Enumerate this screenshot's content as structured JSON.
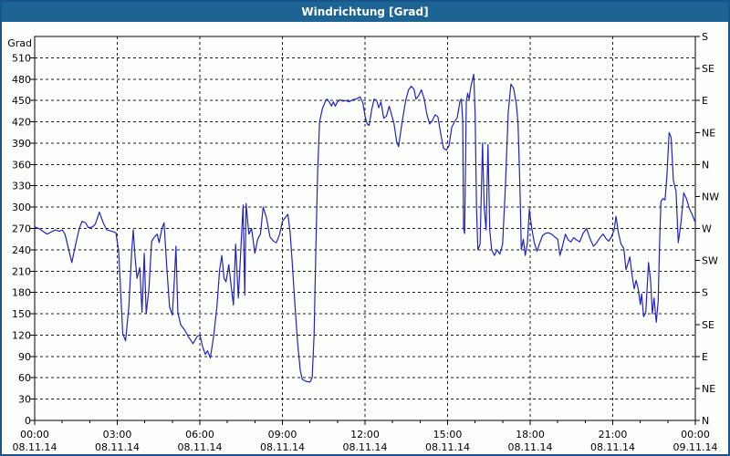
{
  "window": {
    "title": "Windrichtung [Grad]"
  },
  "colors": {
    "titlebar_bg": "#1D6394",
    "titlebar_text": "#FFFFFF",
    "window_border": "#17548C",
    "plot_background": "#FDFFFD",
    "grid": "#1B1B1B",
    "line": "#2222C8",
    "label_text": "#000000"
  },
  "chart_data": {
    "type": "line",
    "title": "Windrichtung [Grad]",
    "grid": "dashed",
    "legend": "none",
    "xlabel": "",
    "ylabel": "Grad",
    "ylim": [
      0,
      540
    ],
    "xlim_hours": [
      0,
      24
    ],
    "y_axis_left": {
      "label": "Grad",
      "min": 0,
      "max": 540,
      "tick_step": 30,
      "tick_labels": [
        "0",
        "30",
        "60",
        "90",
        "120",
        "150",
        "180",
        "210",
        "240",
        "270",
        "300",
        "330",
        "360",
        "390",
        "420",
        "450",
        "480",
        "510"
      ]
    },
    "y_axis_right": {
      "unit": "compass",
      "tick_step_deg": 45,
      "labels_bottom_to_top": [
        "N",
        "NE",
        "E",
        "SE",
        "S",
        "SW",
        "W",
        "NW",
        "N",
        "NE",
        "E",
        "SE",
        "S"
      ]
    },
    "x_axis": {
      "major_tick_hours": 3,
      "minor_tick_hours": 1,
      "ticks": [
        {
          "time": "00:00",
          "date": "08.11.14"
        },
        {
          "time": "03:00",
          "date": "08.11.14"
        },
        {
          "time": "06:00",
          "date": "08.11.14"
        },
        {
          "time": "09:00",
          "date": "08.11.14"
        },
        {
          "time": "12:00",
          "date": "08.11.14"
        },
        {
          "time": "15:00",
          "date": "08.11.14"
        },
        {
          "time": "18:00",
          "date": "08.11.14"
        },
        {
          "time": "21:00",
          "date": "08.11.14"
        },
        {
          "time": "00:00",
          "date": "09.11.14"
        }
      ]
    },
    "series": [
      {
        "name": "Windrichtung",
        "unit": "Grad",
        "color": "#2222C8",
        "points": [
          [
            0,
            272
          ],
          [
            0.15,
            270
          ],
          [
            0.3,
            266
          ],
          [
            0.45,
            262
          ],
          [
            0.6,
            265
          ],
          [
            0.75,
            268
          ],
          [
            0.9,
            266
          ],
          [
            1.0,
            268
          ],
          [
            1.1,
            262
          ],
          [
            1.2,
            246
          ],
          [
            1.35,
            222
          ],
          [
            1.5,
            250
          ],
          [
            1.62,
            270
          ],
          [
            1.72,
            280
          ],
          [
            1.85,
            278
          ],
          [
            1.95,
            271
          ],
          [
            2.1,
            272
          ],
          [
            2.2,
            276
          ],
          [
            2.35,
            293
          ],
          [
            2.5,
            277
          ],
          [
            2.62,
            268
          ],
          [
            2.8,
            266
          ],
          [
            2.95,
            264
          ],
          [
            3.05,
            238
          ],
          [
            3.12,
            185
          ],
          [
            3.2,
            122
          ],
          [
            3.3,
            112
          ],
          [
            3.42,
            160
          ],
          [
            3.52,
            235
          ],
          [
            3.58,
            268
          ],
          [
            3.65,
            228
          ],
          [
            3.72,
            200
          ],
          [
            3.82,
            215
          ],
          [
            3.9,
            152
          ],
          [
            3.98,
            235
          ],
          [
            4.05,
            150
          ],
          [
            4.15,
            185
          ],
          [
            4.25,
            252
          ],
          [
            4.35,
            258
          ],
          [
            4.45,
            262
          ],
          [
            4.52,
            250
          ],
          [
            4.62,
            270
          ],
          [
            4.7,
            278
          ],
          [
            4.8,
            215
          ],
          [
            4.9,
            160
          ],
          [
            5.0,
            148
          ],
          [
            5.08,
            200
          ],
          [
            5.13,
            245
          ],
          [
            5.2,
            152
          ],
          [
            5.3,
            135
          ],
          [
            5.45,
            127
          ],
          [
            5.6,
            117
          ],
          [
            5.75,
            108
          ],
          [
            5.9,
            118
          ],
          [
            6.0,
            120
          ],
          [
            6.1,
            104
          ],
          [
            6.2,
            93
          ],
          [
            6.28,
            98
          ],
          [
            6.38,
            88
          ],
          [
            6.5,
            118
          ],
          [
            6.62,
            160
          ],
          [
            6.72,
            212
          ],
          [
            6.8,
            232
          ],
          [
            6.88,
            200
          ],
          [
            6.95,
            195
          ],
          [
            7.05,
            219
          ],
          [
            7.15,
            185
          ],
          [
            7.22,
            162
          ],
          [
            7.3,
            248
          ],
          [
            7.4,
            172
          ],
          [
            7.5,
            250
          ],
          [
            7.57,
            303
          ],
          [
            7.63,
            176
          ],
          [
            7.68,
            305
          ],
          [
            7.78,
            262
          ],
          [
            7.88,
            270
          ],
          [
            8.0,
            235
          ],
          [
            8.1,
            255
          ],
          [
            8.2,
            262
          ],
          [
            8.3,
            300
          ],
          [
            8.42,
            285
          ],
          [
            8.55,
            258
          ],
          [
            8.68,
            252
          ],
          [
            8.78,
            250
          ],
          [
            8.9,
            262
          ],
          [
            9.0,
            280
          ],
          [
            9.1,
            285
          ],
          [
            9.2,
            290
          ],
          [
            9.28,
            265
          ],
          [
            9.35,
            225
          ],
          [
            9.45,
            165
          ],
          [
            9.55,
            110
          ],
          [
            9.65,
            70
          ],
          [
            9.72,
            58
          ],
          [
            9.85,
            55
          ],
          [
            10.0,
            54
          ],
          [
            10.08,
            60
          ],
          [
            10.15,
            120
          ],
          [
            10.22,
            250
          ],
          [
            10.28,
            350
          ],
          [
            10.35,
            420
          ],
          [
            10.45,
            438
          ],
          [
            10.55,
            448
          ],
          [
            10.62,
            452
          ],
          [
            10.7,
            448
          ],
          [
            10.78,
            442
          ],
          [
            10.85,
            448
          ],
          [
            10.92,
            442
          ],
          [
            11.0,
            448
          ],
          [
            11.1,
            451
          ],
          [
            11.2,
            449
          ],
          [
            11.3,
            450
          ],
          [
            11.42,
            448
          ],
          [
            11.55,
            451
          ],
          [
            11.68,
            452
          ],
          [
            11.82,
            455
          ],
          [
            11.92,
            447
          ],
          [
            12.0,
            428
          ],
          [
            12.08,
            417
          ],
          [
            12.15,
            415
          ],
          [
            12.25,
            438
          ],
          [
            12.33,
            452
          ],
          [
            12.42,
            450
          ],
          [
            12.5,
            440
          ],
          [
            12.58,
            448
          ],
          [
            12.68,
            425
          ],
          [
            12.78,
            428
          ],
          [
            12.88,
            442
          ],
          [
            12.95,
            432
          ],
          [
            13.05,
            418
          ],
          [
            13.15,
            392
          ],
          [
            13.22,
            385
          ],
          [
            13.35,
            420
          ],
          [
            13.48,
            450
          ],
          [
            13.58,
            465
          ],
          [
            13.68,
            470
          ],
          [
            13.78,
            466
          ],
          [
            13.85,
            452
          ],
          [
            13.95,
            457
          ],
          [
            14.05,
            465
          ],
          [
            14.15,
            452
          ],
          [
            14.25,
            430
          ],
          [
            14.35,
            417
          ],
          [
            14.45,
            422
          ],
          [
            14.55,
            430
          ],
          [
            14.65,
            427
          ],
          [
            14.75,
            403
          ],
          [
            14.85,
            383
          ],
          [
            14.95,
            380
          ],
          [
            15.05,
            386
          ],
          [
            15.15,
            412
          ],
          [
            15.25,
            420
          ],
          [
            15.35,
            426
          ],
          [
            15.45,
            449
          ],
          [
            15.5,
            452
          ],
          [
            15.55,
            422
          ],
          [
            15.58,
            270
          ],
          [
            15.62,
            263
          ],
          [
            15.68,
            448
          ],
          [
            15.73,
            460
          ],
          [
            15.78,
            452
          ],
          [
            15.85,
            470
          ],
          [
            15.95,
            487
          ],
          [
            16.0,
            430
          ],
          [
            16.05,
            300
          ],
          [
            16.1,
            240
          ],
          [
            16.18,
            248
          ],
          [
            16.27,
            390
          ],
          [
            16.33,
            300
          ],
          [
            16.4,
            268
          ],
          [
            16.47,
            388
          ],
          [
            16.53,
            268
          ],
          [
            16.6,
            240
          ],
          [
            16.7,
            232
          ],
          [
            16.8,
            240
          ],
          [
            16.9,
            234
          ],
          [
            17.0,
            248
          ],
          [
            17.1,
            330
          ],
          [
            17.2,
            432
          ],
          [
            17.3,
            473
          ],
          [
            17.4,
            467
          ],
          [
            17.5,
            444
          ],
          [
            17.56,
            418
          ],
          [
            17.63,
            328
          ],
          [
            17.68,
            240
          ],
          [
            17.75,
            255
          ],
          [
            17.82,
            232
          ],
          [
            17.9,
            250
          ],
          [
            17.97,
            297
          ],
          [
            18.05,
            272
          ],
          [
            18.15,
            250
          ],
          [
            18.25,
            238
          ],
          [
            18.35,
            250
          ],
          [
            18.45,
            260
          ],
          [
            18.55,
            263
          ],
          [
            18.65,
            264
          ],
          [
            18.78,
            262
          ],
          [
            18.9,
            258
          ],
          [
            19.0,
            255
          ],
          [
            19.08,
            232
          ],
          [
            19.18,
            246
          ],
          [
            19.28,
            262
          ],
          [
            19.38,
            254
          ],
          [
            19.48,
            251
          ],
          [
            19.58,
            257
          ],
          [
            19.68,
            254
          ],
          [
            19.8,
            251
          ],
          [
            19.92,
            263
          ],
          [
            20.05,
            270
          ],
          [
            20.18,
            255
          ],
          [
            20.3,
            245
          ],
          [
            20.42,
            250
          ],
          [
            20.55,
            258
          ],
          [
            20.65,
            262
          ],
          [
            20.75,
            256
          ],
          [
            20.85,
            252
          ],
          [
            20.95,
            258
          ],
          [
            21.05,
            268
          ],
          [
            21.12,
            287
          ],
          [
            21.2,
            265
          ],
          [
            21.3,
            248
          ],
          [
            21.4,
            242
          ],
          [
            21.48,
            212
          ],
          [
            21.56,
            222
          ],
          [
            21.62,
            230
          ],
          [
            21.7,
            205
          ],
          [
            21.78,
            185
          ],
          [
            21.85,
            197
          ],
          [
            21.92,
            186
          ],
          [
            22.0,
            163
          ],
          [
            22.05,
            178
          ],
          [
            22.12,
            146
          ],
          [
            22.2,
            152
          ],
          [
            22.3,
            222
          ],
          [
            22.38,
            195
          ],
          [
            22.44,
            150
          ],
          [
            22.5,
            172
          ],
          [
            22.58,
            138
          ],
          [
            22.65,
            168
          ],
          [
            22.7,
            248
          ],
          [
            22.75,
            308
          ],
          [
            22.82,
            312
          ],
          [
            22.9,
            310
          ],
          [
            22.97,
            345
          ],
          [
            23.05,
            405
          ],
          [
            23.12,
            398
          ],
          [
            23.2,
            338
          ],
          [
            23.3,
            322
          ],
          [
            23.38,
            250
          ],
          [
            23.48,
            278
          ],
          [
            23.58,
            320
          ],
          [
            23.68,
            312
          ],
          [
            23.78,
            298
          ],
          [
            23.88,
            290
          ],
          [
            23.98,
            280
          ]
        ]
      }
    ]
  }
}
